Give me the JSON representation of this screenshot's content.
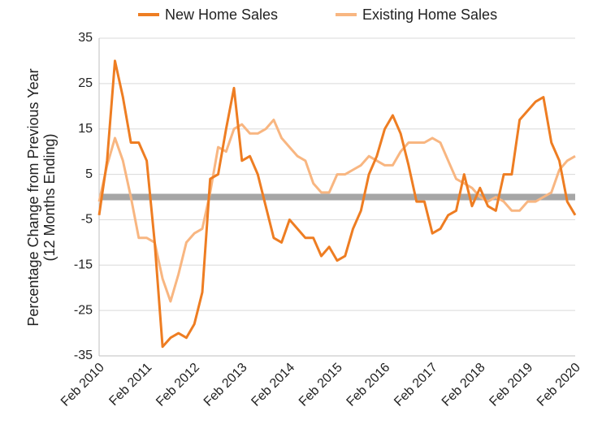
{
  "chart_data": {
    "type": "line",
    "ylabel_lines": [
      "Percentage Change from Previous Year",
      "(12 Months Ending)"
    ],
    "categories": [
      "Feb 2010",
      null,
      null,
      null,
      null,
      null,
      "Feb 2011",
      null,
      null,
      null,
      null,
      null,
      "Feb 2012",
      null,
      null,
      null,
      null,
      null,
      "Feb 2013",
      null,
      null,
      null,
      null,
      null,
      "Feb 2014",
      null,
      null,
      null,
      null,
      null,
      "Feb 2015",
      null,
      null,
      null,
      null,
      null,
      "Feb 2016",
      null,
      null,
      null,
      null,
      null,
      "Feb 2017",
      null,
      null,
      null,
      null,
      null,
      "Feb 2018",
      null,
      null,
      null,
      null,
      null,
      "Feb 2019",
      null,
      null,
      null,
      null,
      null,
      "Feb 2020"
    ],
    "series": [
      {
        "name": "New Home Sales",
        "color": "#ee7d22",
        "values": [
          -4,
          8,
          30,
          22,
          12,
          12,
          8,
          -10,
          -33,
          -31,
          -30,
          -31,
          -28,
          -21,
          4,
          5,
          15,
          24,
          8,
          9,
          5,
          -2,
          -9,
          -10,
          -5,
          -7,
          -9,
          -9,
          -13,
          -11,
          -14,
          -13,
          -7,
          -3,
          5,
          9,
          15,
          18,
          14,
          7,
          -1,
          -1,
          -8,
          -7,
          -4,
          -3,
          5,
          -2,
          2,
          -2,
          -3,
          5,
          5,
          17,
          19,
          21,
          22,
          12,
          8,
          -1,
          -4
        ]
      },
      {
        "name": "Existing Home Sales",
        "color": "#f8b681",
        "values": [
          -1,
          7,
          13,
          8,
          0,
          -9,
          -9,
          -10,
          -18,
          -23,
          -17,
          -10,
          -8,
          -7,
          1,
          11,
          10,
          15,
          16,
          14,
          14,
          15,
          17,
          13,
          11,
          9,
          8,
          3,
          1,
          1,
          5,
          5,
          6,
          7,
          9,
          8,
          7,
          7,
          10,
          12,
          12,
          12,
          13,
          12,
          8,
          4,
          3,
          2,
          0,
          -1,
          0,
          -1,
          -3,
          -3,
          -1,
          -1,
          0,
          1,
          6,
          8,
          9
        ]
      }
    ],
    "ylim": [
      -35,
      35
    ],
    "yticks": [
      -35,
      -25,
      -15,
      -5,
      5,
      15,
      25,
      35
    ],
    "grid": true,
    "legend": "top"
  }
}
